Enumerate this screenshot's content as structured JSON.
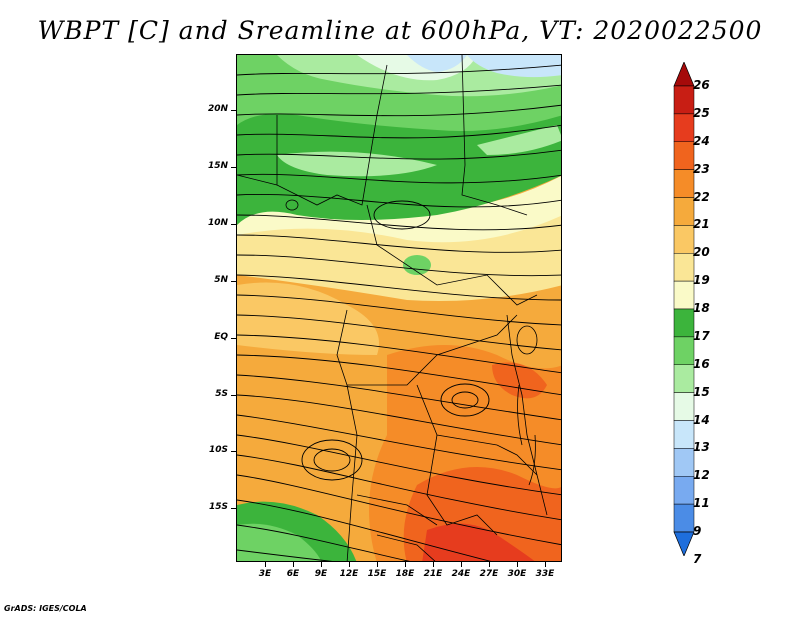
{
  "title": "WBPT [C] and Sreamline at 600hPa, VT: 2020022500",
  "credit": "GrADS: IGES/COLA",
  "lat_labels": [
    "20N",
    "15N",
    "10N",
    "5N",
    "EQ",
    "5S",
    "10S",
    "15S"
  ],
  "lon_labels": [
    "3E",
    "6E",
    "9E",
    "12E",
    "15E",
    "18E",
    "21E",
    "24E",
    "27E",
    "30E",
    "33E"
  ],
  "colorbar": {
    "labels": [
      "26",
      "25",
      "24",
      "23",
      "22",
      "21",
      "20",
      "19",
      "18",
      "17",
      "16",
      "15",
      "14",
      "13",
      "12",
      "11",
      "9",
      "7"
    ],
    "colors": [
      "#a50a0a",
      "#c81e14",
      "#e63c1e",
      "#f0641e",
      "#f58c28",
      "#f5aa3c",
      "#fac864",
      "#fae696",
      "#fafac8",
      "#3cb43c",
      "#6ed264",
      "#aaeba0",
      "#e6fae6",
      "#c8e6fa",
      "#a0c8f5",
      "#78aaf0",
      "#4b8ce6",
      "#1e6edc"
    ]
  }
}
